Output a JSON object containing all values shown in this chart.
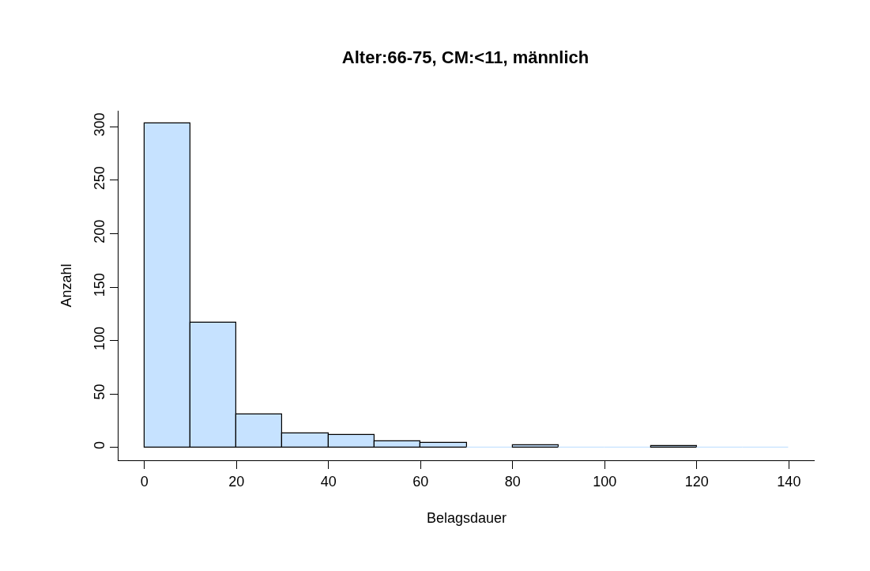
{
  "chart_data": {
    "type": "histogram",
    "title": "Alter:66-75, CM:<11, männlich",
    "xlabel": "Belagsdauer",
    "ylabel": "Anzahl",
    "bins": [
      0,
      10,
      20,
      30,
      40,
      50,
      60,
      70,
      80,
      90,
      100,
      110,
      120,
      130,
      140
    ],
    "values": [
      303,
      117,
      31,
      13,
      12,
      6,
      4,
      0,
      2,
      0,
      0,
      1,
      0,
      0
    ],
    "color": "#c6e2ff",
    "xlim": [
      -5.6,
      145.6
    ],
    "ylim": [
      -12,
      315
    ],
    "xticks": [
      0,
      20,
      40,
      60,
      80,
      100,
      120,
      140
    ],
    "yticks": [
      0,
      50,
      100,
      150,
      200,
      250,
      300
    ]
  }
}
